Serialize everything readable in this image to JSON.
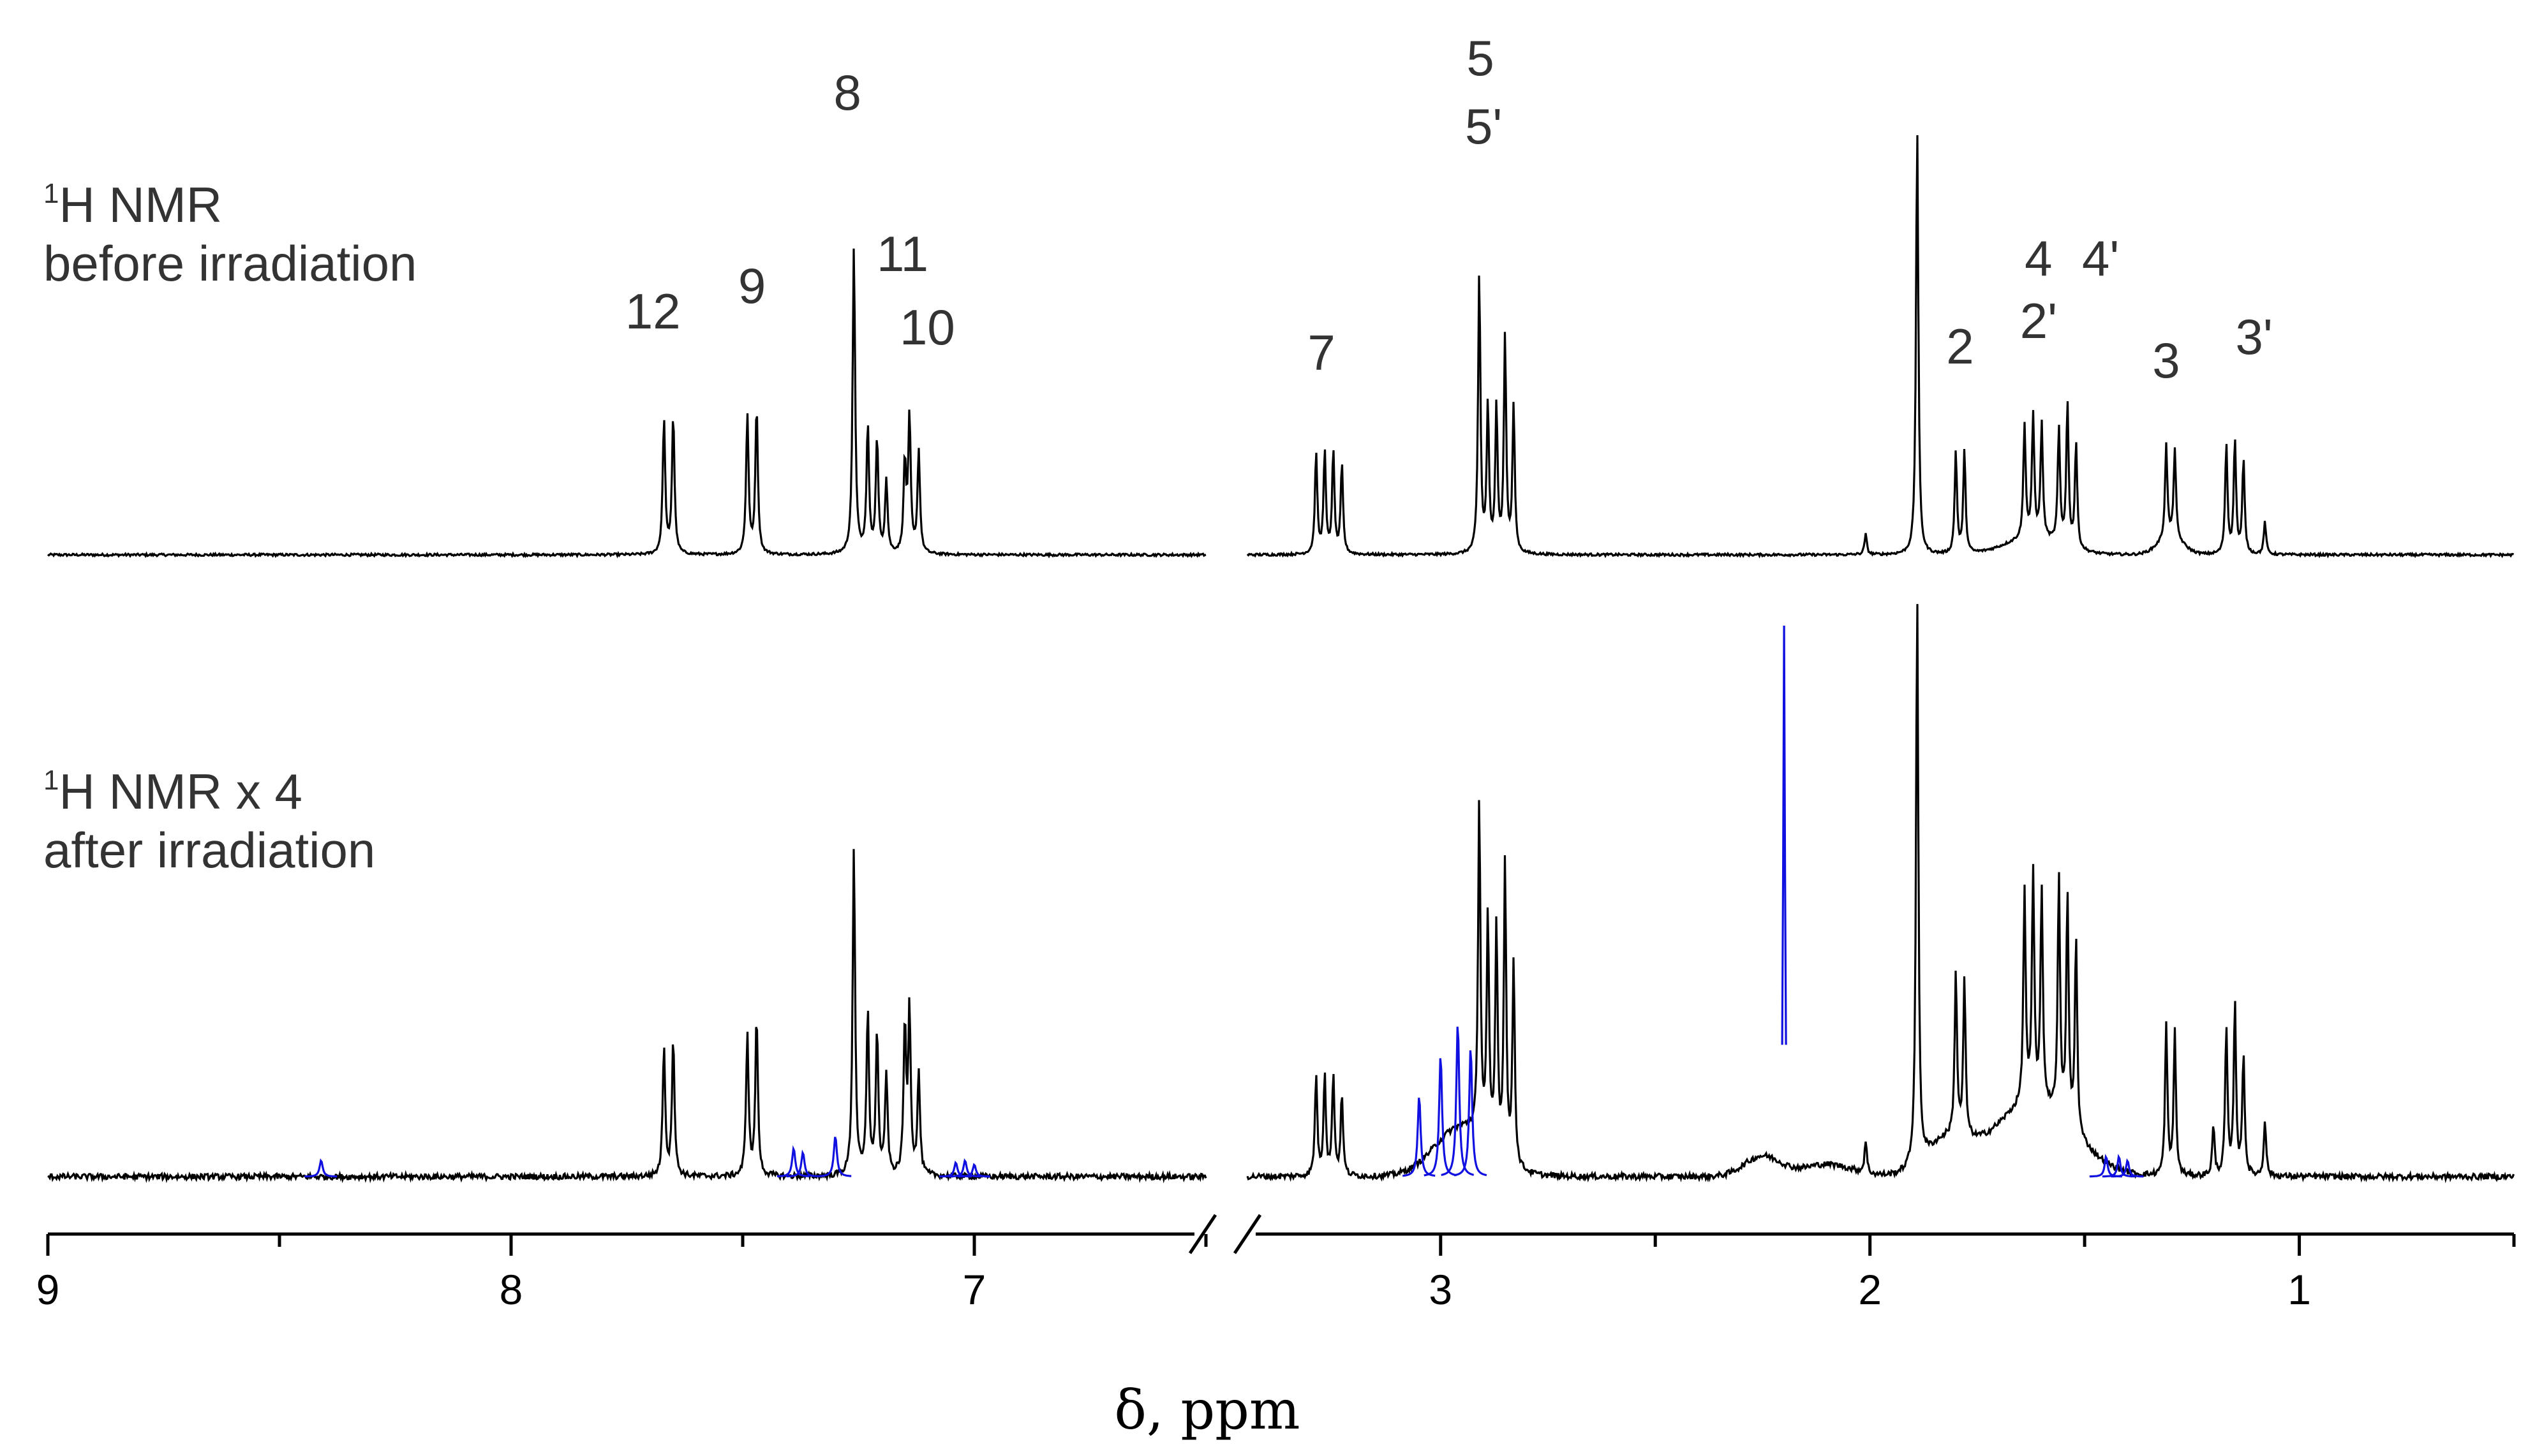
{
  "chart_data": {
    "type": "line",
    "title": "",
    "xlabel": "δ, ppm",
    "ylabel": "",
    "x_reversed": true,
    "broken_axis": true,
    "segments": [
      {
        "xlim": [
          9,
          6.5
        ],
        "ticks": [
          9,
          8,
          7
        ]
      },
      {
        "xlim": [
          3.45,
          0.5
        ],
        "ticks": [
          3,
          2,
          1
        ]
      }
    ],
    "grid": false,
    "legend": "none",
    "series": [
      {
        "name": "before irradiation",
        "label_lines": [
          {
            "sup": "1",
            "text": "H NMR"
          },
          {
            "sup": "",
            "text": "before irradiation"
          }
        ],
        "color": "#000000",
        "peaks": [
          {
            "ppm": 7.67,
            "h": 0.33
          },
          {
            "ppm": 7.65,
            "h": 0.34
          },
          {
            "ppm": 7.49,
            "h": 0.34
          },
          {
            "ppm": 7.47,
            "h": 0.36
          },
          {
            "ppm": 7.26,
            "h": 0.75
          },
          {
            "ppm": 7.23,
            "h": 0.31
          },
          {
            "ppm": 7.21,
            "h": 0.28
          },
          {
            "ppm": 7.19,
            "h": 0.18
          },
          {
            "ppm": 7.15,
            "h": 0.22
          },
          {
            "ppm": 7.14,
            "h": 0.33
          },
          {
            "ppm": 7.12,
            "h": 0.25
          },
          {
            "ppm": 3.29,
            "h": 0.25
          },
          {
            "ppm": 3.27,
            "h": 0.25
          },
          {
            "ppm": 3.25,
            "h": 0.25
          },
          {
            "ppm": 3.23,
            "h": 0.22
          },
          {
            "ppm": 2.91,
            "h": 0.69
          },
          {
            "ppm": 2.89,
            "h": 0.36
          },
          {
            "ppm": 2.87,
            "h": 0.36
          },
          {
            "ppm": 2.85,
            "h": 0.53
          },
          {
            "ppm": 2.83,
            "h": 0.36
          },
          {
            "ppm": 2.01,
            "h": 0.05
          },
          {
            "ppm": 1.89,
            "h": 1.05
          },
          {
            "ppm": 1.8,
            "h": 0.25
          },
          {
            "ppm": 1.78,
            "h": 0.25
          },
          {
            "ppm": 1.64,
            "h": 0.28
          },
          {
            "ppm": 1.62,
            "h": 0.3
          },
          {
            "ppm": 1.6,
            "h": 0.28
          },
          {
            "ppm": 1.56,
            "h": 0.28
          },
          {
            "ppm": 1.54,
            "h": 0.35
          },
          {
            "ppm": 1.52,
            "h": 0.26
          },
          {
            "ppm": 1.31,
            "h": 0.23
          },
          {
            "ppm": 1.29,
            "h": 0.22
          },
          {
            "ppm": 1.17,
            "h": 0.27
          },
          {
            "ppm": 1.15,
            "h": 0.28
          },
          {
            "ppm": 1.13,
            "h": 0.23
          },
          {
            "ppm": 1.08,
            "h": 0.08
          }
        ],
        "peak_labels": [
          {
            "ppm": 7.68,
            "lines": [
              "12"
            ]
          },
          {
            "ppm": 7.48,
            "lines": [
              "9"
            ]
          },
          {
            "ppm": 7.26,
            "lines": [
              "8"
            ]
          },
          {
            "ppm": 7.21,
            "lines": [
              "11"
            ]
          },
          {
            "ppm": 7.14,
            "lines": [
              "10"
            ]
          },
          {
            "ppm": 3.27,
            "lines": [
              "7"
            ]
          },
          {
            "ppm": 2.9,
            "lines": [
              "5",
              "5'"
            ]
          },
          {
            "ppm": 1.79,
            "lines": [
              "2"
            ]
          },
          {
            "ppm": 1.6,
            "lines": [
              "4",
              "2'"
            ]
          },
          {
            "ppm": 1.5,
            "lines": [
              "4'"
            ]
          },
          {
            "ppm": 1.31,
            "lines": [
              "3"
            ]
          },
          {
            "ppm": 1.15,
            "lines": [
              "3'"
            ]
          }
        ]
      },
      {
        "name": "after irradiation",
        "label_lines": [
          {
            "sup": "1",
            "text": "H NMR x 4"
          },
          {
            "sup": "",
            "text": "after irradiation"
          }
        ],
        "color": "#000000",
        "new_signal_color": "#1010e0",
        "peaks": [
          {
            "ppm": 7.67,
            "h": 0.32
          },
          {
            "ppm": 7.65,
            "h": 0.34
          },
          {
            "ppm": 7.49,
            "h": 0.35
          },
          {
            "ppm": 7.47,
            "h": 0.39
          },
          {
            "ppm": 7.26,
            "h": 0.8
          },
          {
            "ppm": 7.23,
            "h": 0.4
          },
          {
            "ppm": 7.21,
            "h": 0.35
          },
          {
            "ppm": 7.19,
            "h": 0.25
          },
          {
            "ppm": 7.15,
            "h": 0.36
          },
          {
            "ppm": 7.14,
            "h": 0.4
          },
          {
            "ppm": 7.12,
            "h": 0.25
          },
          {
            "ppm": 3.29,
            "h": 0.25
          },
          {
            "ppm": 3.27,
            "h": 0.25
          },
          {
            "ppm": 3.25,
            "h": 0.25
          },
          {
            "ppm": 3.23,
            "h": 0.2
          },
          {
            "ppm": 2.91,
            "h": 0.82
          },
          {
            "ppm": 2.89,
            "h": 0.55
          },
          {
            "ppm": 2.87,
            "h": 0.55
          },
          {
            "ppm": 2.85,
            "h": 0.73
          },
          {
            "ppm": 2.83,
            "h": 0.5
          },
          {
            "ppm": 2.01,
            "h": 0.08
          },
          {
            "ppm": 1.89,
            "h": 1.4
          },
          {
            "ppm": 1.8,
            "h": 0.4
          },
          {
            "ppm": 1.78,
            "h": 0.38
          },
          {
            "ppm": 1.64,
            "h": 0.52
          },
          {
            "ppm": 1.62,
            "h": 0.56
          },
          {
            "ppm": 1.6,
            "h": 0.52
          },
          {
            "ppm": 1.56,
            "h": 0.58
          },
          {
            "ppm": 1.54,
            "h": 0.56
          },
          {
            "ppm": 1.52,
            "h": 0.48
          },
          {
            "ppm": 1.31,
            "h": 0.37
          },
          {
            "ppm": 1.29,
            "h": 0.35
          },
          {
            "ppm": 1.2,
            "h": 0.12
          },
          {
            "ppm": 1.17,
            "h": 0.36
          },
          {
            "ppm": 1.15,
            "h": 0.42
          },
          {
            "ppm": 1.13,
            "h": 0.3
          },
          {
            "ppm": 1.08,
            "h": 0.14
          }
        ],
        "new_signals": [
          {
            "ppm": 8.41,
            "h": 0.04
          },
          {
            "ppm": 7.39,
            "h": 0.07
          },
          {
            "ppm": 7.37,
            "h": 0.06
          },
          {
            "ppm": 7.3,
            "h": 0.1
          },
          {
            "ppm": 7.04,
            "h": 0.035
          },
          {
            "ppm": 7.02,
            "h": 0.04
          },
          {
            "ppm": 7.0,
            "h": 0.03
          },
          {
            "ppm": 3.05,
            "h": 0.2
          },
          {
            "ppm": 3.0,
            "h": 0.3
          },
          {
            "ppm": 2.96,
            "h": 0.38
          },
          {
            "ppm": 2.93,
            "h": 0.32
          },
          {
            "ppm": 2.2,
            "h": 1.35
          },
          {
            "ppm": 1.45,
            "h": 0.05
          },
          {
            "ppm": 1.42,
            "h": 0.05
          },
          {
            "ppm": 1.4,
            "h": 0.04
          }
        ]
      }
    ]
  }
}
